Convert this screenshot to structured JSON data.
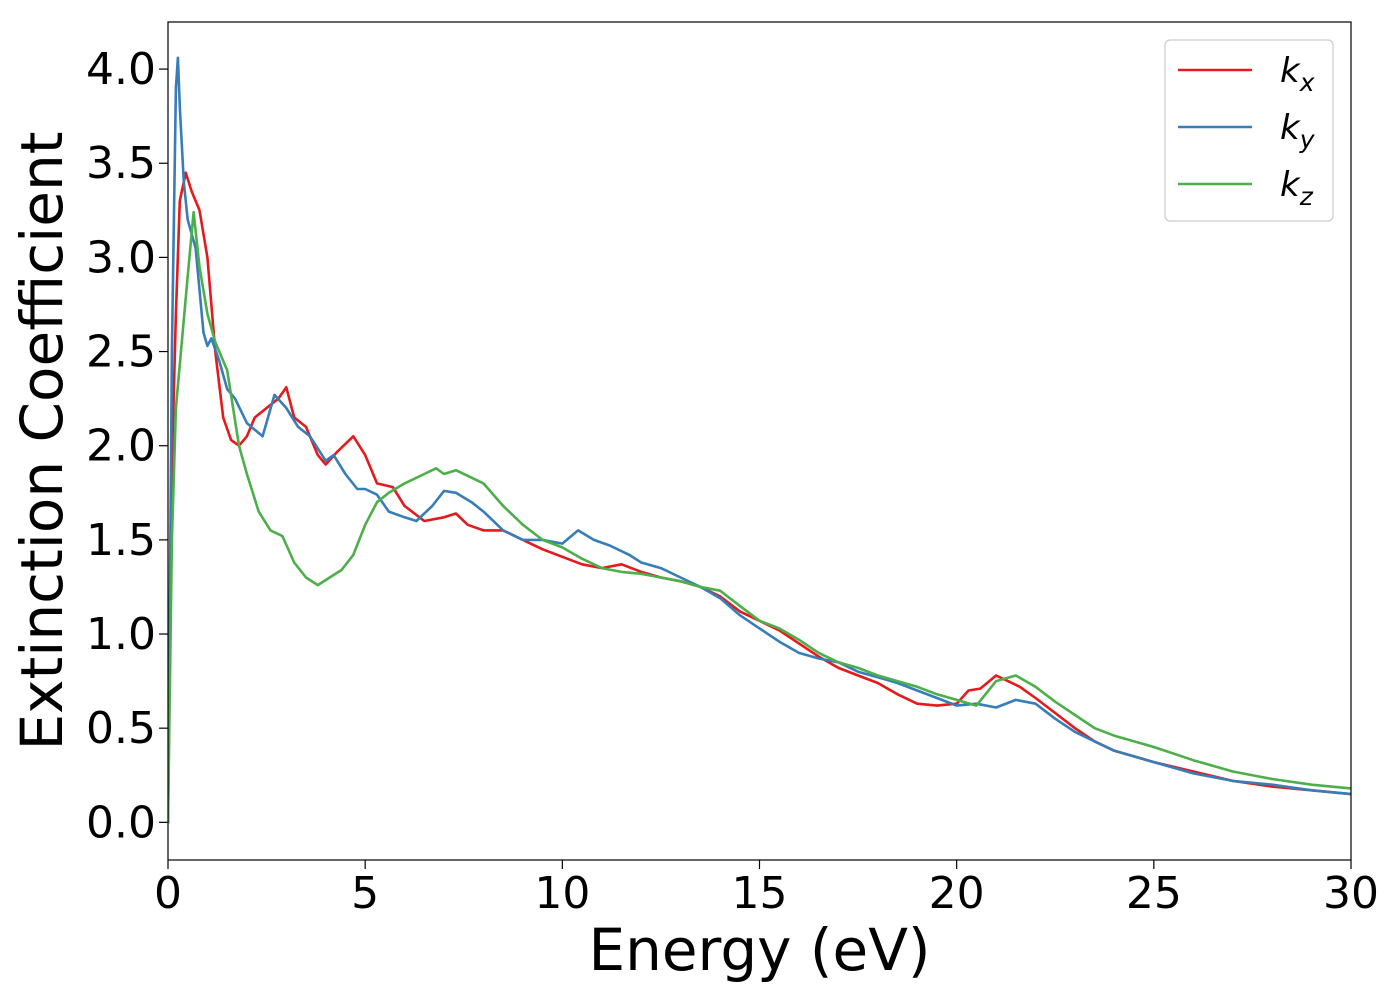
{
  "chart_data": {
    "type": "line",
    "title": "",
    "xlabel": "Energy (eV)",
    "ylabel": "Extinction Coefficient",
    "xlim": [
      0,
      30
    ],
    "ylim": [
      -0.2,
      4.25
    ],
    "xticks": [
      "0",
      "5",
      "10",
      "15",
      "20",
      "25",
      "30"
    ],
    "yticks": [
      "0.0",
      "0.5",
      "1.0",
      "1.5",
      "2.0",
      "2.5",
      "3.0",
      "3.5",
      "4.0"
    ],
    "grid": false,
    "legend_position": "top-right",
    "series": [
      {
        "name": "k",
        "subscript": "x",
        "color": "#e41a1c",
        "x": [
          0.0,
          0.1,
          0.2,
          0.3,
          0.45,
          0.6,
          0.8,
          1.0,
          1.2,
          1.4,
          1.6,
          1.8,
          2.0,
          2.2,
          2.5,
          2.8,
          3.0,
          3.2,
          3.5,
          3.8,
          4.0,
          4.3,
          4.7,
          5.0,
          5.3,
          5.7,
          6.0,
          6.5,
          7.0,
          7.3,
          7.6,
          8.0,
          8.5,
          9.0,
          9.5,
          10.0,
          10.5,
          11.0,
          11.5,
          12.0,
          12.5,
          13.0,
          13.5,
          14.0,
          14.5,
          15.0,
          15.5,
          16.0,
          16.5,
          17.0,
          17.5,
          18.0,
          18.5,
          19.0,
          19.5,
          20.0,
          20.3,
          20.6,
          21.0,
          21.3,
          21.6,
          22.0,
          22.5,
          23.0,
          23.5,
          24.0,
          25.0,
          26.0,
          27.0,
          28.0,
          29.0,
          30.0
        ],
        "y": [
          0.0,
          1.9,
          2.7,
          3.3,
          3.45,
          3.35,
          3.25,
          3.0,
          2.5,
          2.15,
          2.03,
          2.0,
          2.05,
          2.15,
          2.2,
          2.25,
          2.31,
          2.15,
          2.1,
          1.95,
          1.9,
          1.97,
          2.05,
          1.95,
          1.8,
          1.78,
          1.68,
          1.6,
          1.62,
          1.64,
          1.58,
          1.55,
          1.55,
          1.5,
          1.45,
          1.41,
          1.37,
          1.35,
          1.37,
          1.33,
          1.3,
          1.28,
          1.25,
          1.2,
          1.12,
          1.07,
          1.02,
          0.95,
          0.88,
          0.82,
          0.78,
          0.74,
          0.68,
          0.63,
          0.62,
          0.63,
          0.7,
          0.71,
          0.78,
          0.75,
          0.72,
          0.66,
          0.58,
          0.5,
          0.43,
          0.38,
          0.32,
          0.27,
          0.22,
          0.19,
          0.17,
          0.15
        ]
      },
      {
        "name": "k",
        "subscript": "y",
        "color": "#377eb8",
        "x": [
          0.0,
          0.1,
          0.2,
          0.25,
          0.3,
          0.4,
          0.5,
          0.7,
          0.9,
          1.0,
          1.1,
          1.3,
          1.5,
          1.7,
          2.0,
          2.4,
          2.7,
          3.0,
          3.3,
          3.6,
          4.0,
          4.2,
          4.5,
          4.8,
          5.0,
          5.3,
          5.6,
          6.0,
          6.3,
          6.7,
          7.0,
          7.3,
          7.7,
          8.0,
          8.5,
          9.0,
          9.5,
          10.0,
          10.4,
          10.8,
          11.2,
          11.7,
          12.0,
          12.5,
          13.0,
          13.5,
          14.0,
          14.5,
          15.0,
          15.5,
          16.0,
          16.5,
          17.0,
          17.5,
          18.0,
          18.5,
          19.0,
          19.5,
          20.0,
          20.5,
          21.0,
          21.5,
          22.0,
          22.5,
          23.0,
          23.5,
          24.0,
          25.0,
          26.0,
          27.0,
          28.0,
          29.0,
          30.0
        ],
        "y": [
          0.0,
          2.5,
          3.9,
          4.06,
          3.8,
          3.4,
          3.2,
          3.05,
          2.6,
          2.53,
          2.57,
          2.45,
          2.3,
          2.25,
          2.12,
          2.05,
          2.27,
          2.2,
          2.1,
          2.05,
          1.92,
          1.95,
          1.85,
          1.77,
          1.77,
          1.74,
          1.65,
          1.62,
          1.6,
          1.68,
          1.76,
          1.75,
          1.7,
          1.65,
          1.55,
          1.5,
          1.5,
          1.48,
          1.55,
          1.5,
          1.47,
          1.42,
          1.38,
          1.35,
          1.3,
          1.25,
          1.19,
          1.1,
          1.03,
          0.96,
          0.9,
          0.87,
          0.85,
          0.8,
          0.77,
          0.74,
          0.7,
          0.66,
          0.62,
          0.63,
          0.61,
          0.65,
          0.63,
          0.55,
          0.48,
          0.43,
          0.38,
          0.32,
          0.26,
          0.22,
          0.2,
          0.17,
          0.15
        ]
      },
      {
        "name": "k",
        "subscript": "z",
        "color": "#4daf4a",
        "x": [
          0.0,
          0.1,
          0.2,
          0.35,
          0.5,
          0.65,
          0.8,
          1.0,
          1.2,
          1.5,
          1.8,
          2.0,
          2.3,
          2.6,
          2.9,
          3.2,
          3.5,
          3.8,
          4.1,
          4.4,
          4.7,
          5.0,
          5.3,
          5.6,
          6.0,
          6.5,
          6.8,
          7.0,
          7.3,
          7.6,
          8.0,
          8.5,
          9.0,
          9.5,
          10.0,
          10.5,
          11.0,
          11.5,
          12.0,
          12.5,
          13.0,
          13.5,
          14.0,
          14.5,
          15.0,
          15.5,
          16.0,
          16.5,
          17.0,
          17.5,
          18.0,
          18.5,
          19.0,
          19.5,
          20.0,
          20.5,
          21.0,
          21.5,
          22.0,
          22.5,
          23.0,
          23.5,
          24.0,
          25.0,
          26.0,
          27.0,
          28.0,
          29.0,
          30.0
        ],
        "y": [
          0.0,
          1.5,
          2.2,
          2.55,
          2.9,
          3.24,
          2.95,
          2.7,
          2.55,
          2.4,
          2.0,
          1.85,
          1.65,
          1.55,
          1.52,
          1.38,
          1.3,
          1.26,
          1.3,
          1.34,
          1.42,
          1.58,
          1.7,
          1.75,
          1.8,
          1.85,
          1.88,
          1.85,
          1.87,
          1.84,
          1.8,
          1.68,
          1.58,
          1.5,
          1.46,
          1.4,
          1.35,
          1.33,
          1.32,
          1.3,
          1.28,
          1.25,
          1.23,
          1.15,
          1.07,
          1.03,
          0.97,
          0.9,
          0.85,
          0.82,
          0.78,
          0.75,
          0.72,
          0.68,
          0.65,
          0.62,
          0.75,
          0.78,
          0.72,
          0.64,
          0.57,
          0.5,
          0.46,
          0.4,
          0.33,
          0.27,
          0.23,
          0.2,
          0.18
        ]
      }
    ]
  }
}
